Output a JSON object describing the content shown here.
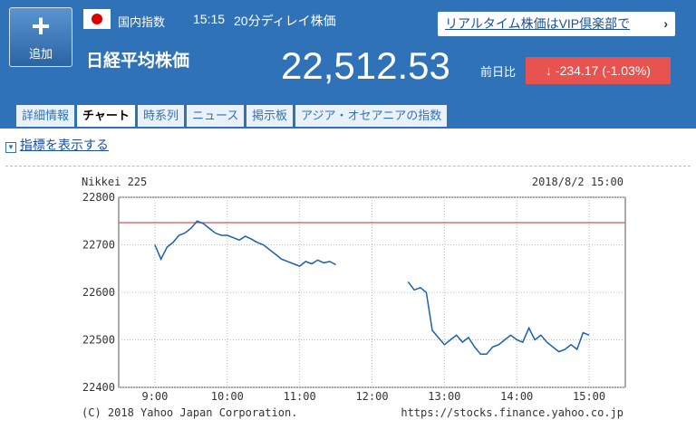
{
  "header": {
    "add_button": "追加",
    "market": "国内指数",
    "time": "15:15",
    "delay": "20分ディレイ株価",
    "name": "日経平均株価",
    "price": "22,512.53",
    "change_label": "前日比",
    "change": "-234.17 (-1.03%)",
    "vip_link": "リアルタイム株価はVIP倶楽部で"
  },
  "tabs": [
    "詳細情報",
    "チャート",
    "時系列",
    "ニュース",
    "掲示板",
    "アジア・オセアニアの指数"
  ],
  "indicator_toggle": "指標を表示する",
  "chart_data": {
    "type": "line",
    "title": "Nikkei 225",
    "subtitle": "2018/8/2 15:00",
    "footer_left": "(C) 2018 Yahoo Japan Corporation.",
    "footer_right": "https://stocks.finance.yahoo.co.jp",
    "x": [
      9,
      9.083,
      9.167,
      9.25,
      9.333,
      9.417,
      9.5,
      9.583,
      9.667,
      9.75,
      9.833,
      9.917,
      10,
      10.083,
      10.167,
      10.25,
      10.333,
      10.417,
      10.5,
      10.583,
      10.667,
      10.75,
      10.833,
      10.917,
      11,
      11.083,
      11.167,
      11.25,
      11.333,
      11.417,
      11.5,
      12,
      12.5,
      12.583,
      12.667,
      12.75,
      12.833,
      12.917,
      13,
      13.083,
      13.167,
      13.25,
      13.333,
      13.417,
      13.5,
      13.583,
      13.667,
      13.75,
      13.833,
      13.917,
      14,
      14.083,
      14.167,
      14.25,
      14.333,
      14.417,
      14.5,
      14.583,
      14.667,
      14.75,
      14.833,
      14.917,
      15
    ],
    "series": [
      {
        "name": "Nikkei 225",
        "color": "#1a5fb4",
        "values": [
          22700,
          22670,
          22695,
          22705,
          22720,
          22725,
          22735,
          22750,
          22745,
          22735,
          22725,
          22720,
          22720,
          22715,
          22710,
          22718,
          22712,
          22705,
          22700,
          22690,
          22680,
          22670,
          22665,
          22660,
          22655,
          22665,
          22660,
          22668,
          22662,
          22665,
          22658,
          null,
          22622,
          22605,
          22610,
          22600,
          22520,
          22505,
          22490,
          22500,
          22510,
          22495,
          22505,
          22485,
          22470,
          22470,
          22485,
          22490,
          22500,
          22510,
          22500,
          22495,
          22525,
          22500,
          22510,
          22495,
          22485,
          22475,
          22480,
          22490,
          22480,
          22515,
          22510
        ]
      }
    ],
    "reference_line": 22746.7,
    "reference_color": "#e05050",
    "xlim": [
      8.5,
      15.5
    ],
    "xticks": [
      {
        "value": 9,
        "label": "9:00"
      },
      {
        "value": 10,
        "label": "10:00"
      },
      {
        "value": 11,
        "label": "11:00"
      },
      {
        "value": 12,
        "label": "12:00"
      },
      {
        "value": 13,
        "label": "13:00"
      },
      {
        "value": 14,
        "label": "14:00"
      },
      {
        "value": 15,
        "label": "15:00"
      }
    ],
    "ylim": [
      22400,
      22800
    ],
    "yticks": [
      22400,
      22500,
      22600,
      22700,
      22800
    ],
    "grid": true
  }
}
